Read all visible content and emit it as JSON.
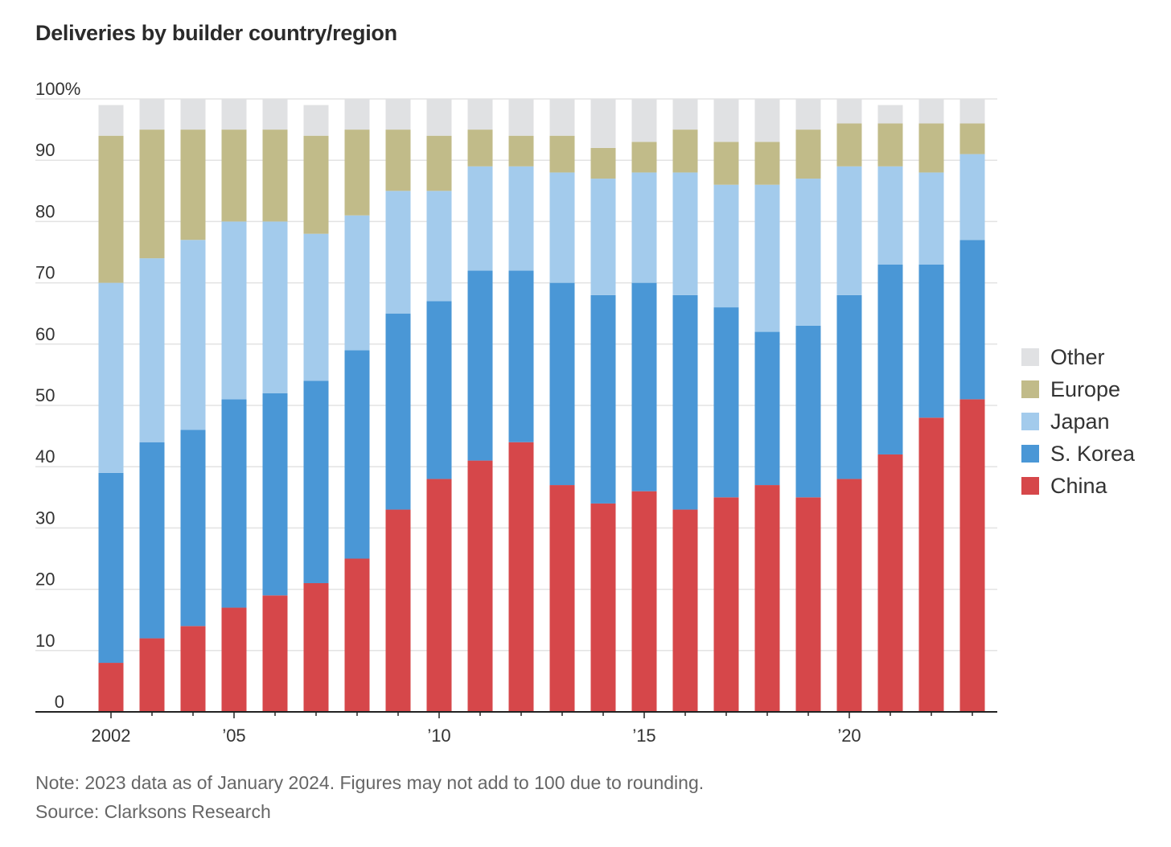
{
  "title": "Deliveries by builder country/region",
  "note": "Note: 2023 data as of January 2024. Figures may not add to 100 due to rounding.",
  "source": "Source: Clarksons Research",
  "colors": {
    "China": "#d6474a",
    "S. Korea": "#4a97d6",
    "Japan": "#a3cbec",
    "Europe": "#c1bb89",
    "Other": "#e0e1e3"
  },
  "legend": [
    "Other",
    "Europe",
    "Japan",
    "S. Korea",
    "China"
  ],
  "chart_data": {
    "type": "bar",
    "stacked": true,
    "categories": [
      2002,
      2003,
      2004,
      2005,
      2006,
      2007,
      2008,
      2009,
      2010,
      2011,
      2012,
      2013,
      2014,
      2015,
      2016,
      2017,
      2018,
      2019,
      2020,
      2021,
      2022,
      2023
    ],
    "x_tick_labels": [
      {
        "year": 2002,
        "label": "2002"
      },
      {
        "year": 2005,
        "label": "’05"
      },
      {
        "year": 2010,
        "label": "’10"
      },
      {
        "year": 2015,
        "label": "’15"
      },
      {
        "year": 2020,
        "label": "’20"
      }
    ],
    "y_ticks": [
      0,
      10,
      20,
      30,
      40,
      50,
      60,
      70,
      80,
      90,
      100
    ],
    "y_tick_labels": [
      "0",
      "10",
      "20",
      "30",
      "40",
      "50",
      "60",
      "70",
      "80",
      "90",
      "100%"
    ],
    "ylim": [
      0,
      100
    ],
    "grid": true,
    "legend_position": "right",
    "series": [
      {
        "name": "China",
        "values": [
          8,
          12,
          14,
          17,
          19,
          21,
          25,
          33,
          38,
          41,
          44,
          37,
          34,
          36,
          33,
          35,
          37,
          35,
          38,
          42,
          48,
          51
        ]
      },
      {
        "name": "S. Korea",
        "values": [
          31,
          32,
          32,
          34,
          33,
          33,
          34,
          32,
          29,
          31,
          28,
          33,
          34,
          34,
          35,
          31,
          25,
          28,
          30,
          31,
          25,
          26
        ]
      },
      {
        "name": "Japan",
        "values": [
          31,
          30,
          31,
          29,
          28,
          24,
          22,
          20,
          18,
          17,
          17,
          18,
          19,
          18,
          20,
          20,
          24,
          24,
          21,
          16,
          15,
          14
        ]
      },
      {
        "name": "Europe",
        "values": [
          24,
          21,
          18,
          15,
          15,
          16,
          14,
          10,
          9,
          6,
          5,
          6,
          5,
          5,
          7,
          7,
          7,
          8,
          7,
          7,
          8,
          5
        ]
      },
      {
        "name": "Other",
        "values": [
          5,
          5,
          5,
          5,
          5,
          5,
          5,
          5,
          6,
          5,
          6,
          6,
          8,
          7,
          5,
          7,
          7,
          5,
          4,
          3,
          4,
          4
        ]
      }
    ]
  }
}
